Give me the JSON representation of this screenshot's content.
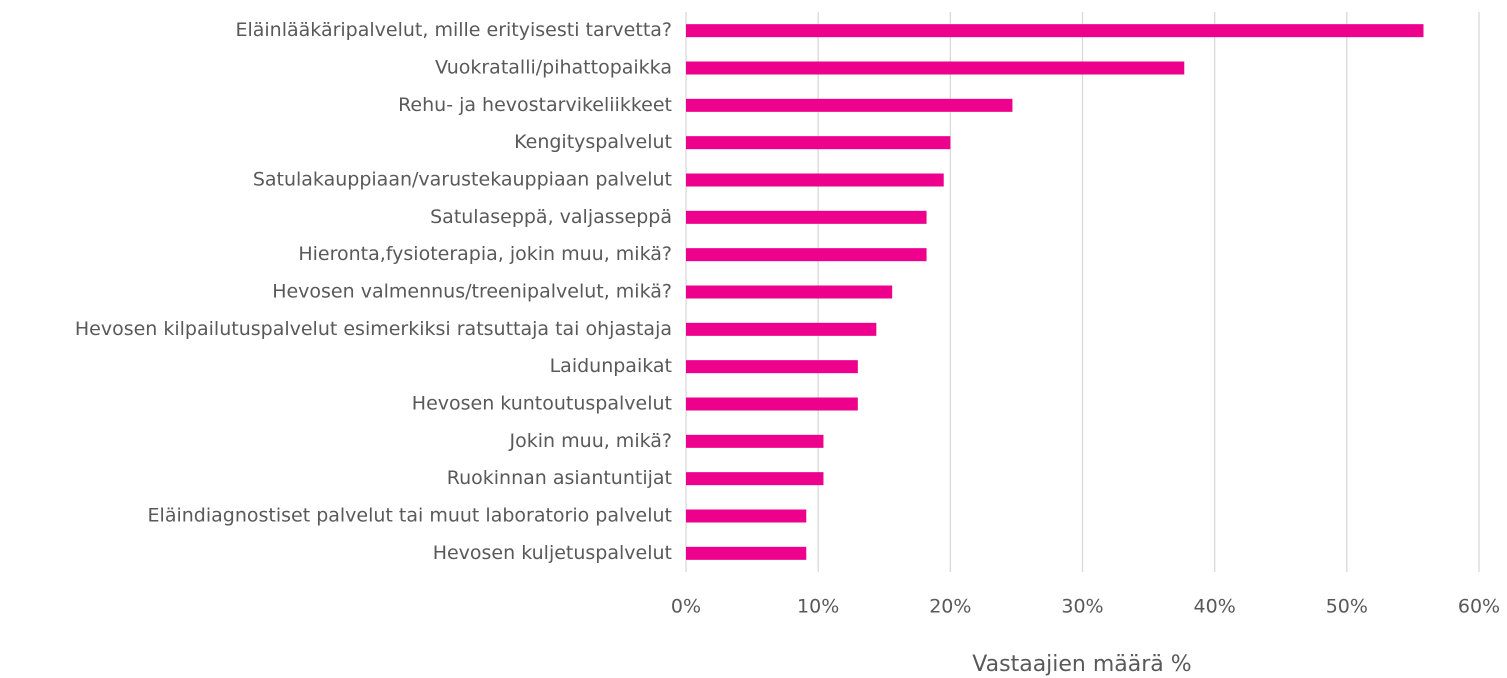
{
  "chart_data": {
    "type": "barh",
    "categories": [
      "Eläinlääkäripalvelut, mille erityisesti tarvetta?",
      "Vuokratalli/pihattopaikka",
      "Rehu- ja hevostarvikeliikkeet",
      "Kengityspalvelut",
      "Satulakauppiaan/varustekauppiaan palvelut",
      "Satulaseppä, valjasseppä",
      "Hieronta,fysioterapia, jokin muu, mikä?",
      "Hevosen valmennus/treenipalvelut, mikä?",
      "Hevosen kilpailutuspalvelut esimerkiksi ratsuttaja tai ohjastaja",
      "Laidunpaikat",
      "Hevosen kuntoutuspalvelut",
      "Jokin muu, mikä?",
      "Ruokinnan asiantuntijat",
      "Eläindiagnostiset palvelut tai muut laboratorio palvelut",
      "Hevosen kuljetuspalvelut"
    ],
    "values": [
      55.8,
      37.7,
      24.7,
      20.0,
      19.5,
      18.2,
      18.2,
      15.6,
      14.4,
      13.0,
      13.0,
      10.4,
      10.4,
      9.1,
      9.1
    ],
    "color": "#ec008c",
    "xlabel": "Vastaajien määrä %",
    "xlim": [
      0,
      60
    ],
    "xticks": [
      {
        "value": 0,
        "label": "0%"
      },
      {
        "value": 10,
        "label": "10%"
      },
      {
        "value": 20,
        "label": "20%"
      },
      {
        "value": 30,
        "label": "30%"
      },
      {
        "value": 40,
        "label": "40%"
      },
      {
        "value": 50,
        "label": "50%"
      },
      {
        "value": 60,
        "label": "60%"
      }
    ],
    "grid": true
  }
}
